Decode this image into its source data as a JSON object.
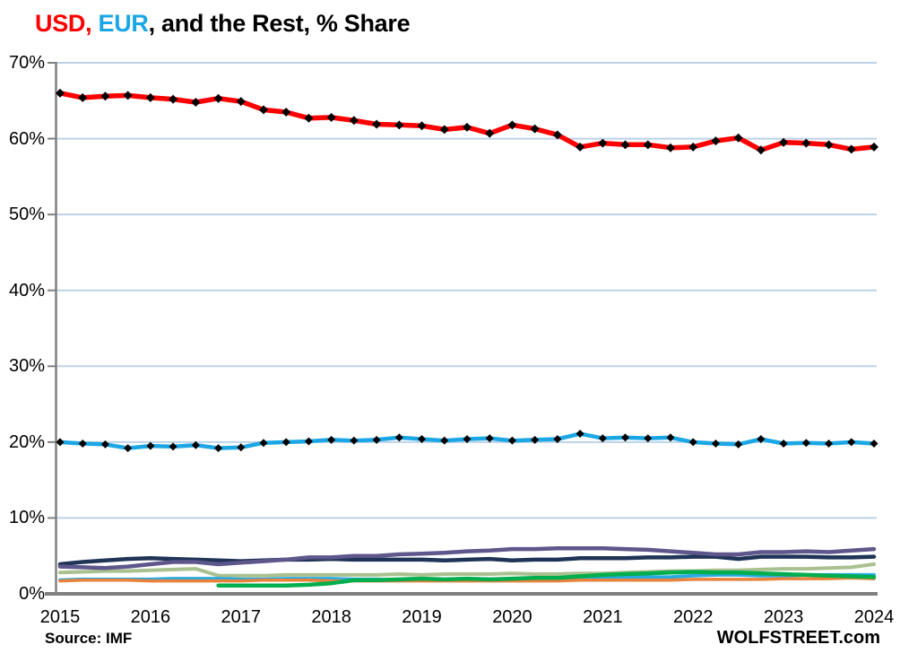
{
  "title": {
    "part_usd": "USD,",
    "part_eur": " EUR",
    "part_rest": ", and the Rest, % Share"
  },
  "footer": {
    "source_label": "Source: IMF",
    "brand": "WOLFSTREET.com"
  },
  "colors": {
    "usd_red": "#FF0000",
    "eur_cyan": "#1BA7E5",
    "navy": "#1F3456",
    "purple": "#5E578C",
    "sage_green": "#A9C08F",
    "sky_blue": "#29ABE2",
    "orange": "#E8823C",
    "green": "#00AE4D",
    "gridline": "#BDD2E7",
    "axis": "#808080",
    "axis_bottom": "#7F7F7F",
    "marker": "#000000",
    "text": "#000000"
  },
  "chart_data": {
    "type": "line",
    "title": "USD, EUR, and the Rest, % Share",
    "xlabel": "",
    "ylabel": "% Share",
    "ylim": [
      0,
      70
    ],
    "x_range": [
      2015,
      2024
    ],
    "x_unit": "years, quarterly data points (2015-Q1 through 2024-Q1)",
    "grid": true,
    "legend_position": "none (USD red and EUR cyan identified in title)",
    "y_ticks": [
      {
        "label": "70%",
        "value": 70
      },
      {
        "label": "60%",
        "value": 60
      },
      {
        "label": "50%",
        "value": 50
      },
      {
        "label": "40%",
        "value": 40
      },
      {
        "label": "30%",
        "value": 30
      },
      {
        "label": "20%",
        "value": 20
      },
      {
        "label": "10%",
        "value": 10
      },
      {
        "label": "0%",
        "value": 0
      }
    ],
    "x_ticks": [
      {
        "label": "2015",
        "value": 2015
      },
      {
        "label": "2016",
        "value": 2016
      },
      {
        "label": "2017",
        "value": 2017
      },
      {
        "label": "2018",
        "value": 2018
      },
      {
        "label": "2019",
        "value": 2019
      },
      {
        "label": "2020",
        "value": 2020
      },
      {
        "label": "2021",
        "value": 2021
      },
      {
        "label": "2022",
        "value": 2022
      },
      {
        "label": "2023",
        "value": 2023
      },
      {
        "label": "2024",
        "value": 2024
      }
    ],
    "series": [
      {
        "name": "sage-green-line",
        "color_key": "sage_green",
        "color": "#A9C08F",
        "width": 4,
        "marker": "none",
        "values": [
          2.8,
          2.9,
          3.0,
          3.0,
          3.1,
          3.2,
          3.3,
          2.4,
          2.4,
          2.4,
          2.5,
          2.5,
          2.5,
          2.5,
          2.5,
          2.6,
          2.5,
          2.6,
          2.6,
          2.6,
          2.7,
          2.6,
          2.6,
          2.7,
          2.7,
          2.8,
          2.9,
          3.0,
          3.0,
          3.1,
          3.1,
          3.2,
          3.3,
          3.3,
          3.4,
          3.5,
          3.9
        ]
      },
      {
        "name": "sky-blue-line",
        "color_key": "sky_blue",
        "color": "#29ABE2",
        "width": 4,
        "marker": "none",
        "values": [
          1.8,
          1.9,
          1.9,
          1.9,
          1.9,
          2.0,
          2.0,
          2.0,
          1.9,
          1.9,
          2.0,
          2.0,
          2.0,
          1.9,
          1.9,
          1.8,
          1.9,
          1.9,
          1.9,
          1.9,
          2.0,
          2.0,
          2.0,
          2.1,
          2.1,
          2.2,
          2.2,
          2.2,
          2.4,
          2.5,
          2.5,
          2.4,
          2.4,
          2.5,
          2.5,
          2.5,
          2.5
        ]
      },
      {
        "name": "orange-line",
        "color_key": "orange",
        "color": "#E8823C",
        "width": 3.5,
        "marker": "none",
        "values": [
          1.7,
          1.8,
          1.8,
          1.8,
          1.7,
          1.7,
          1.7,
          1.7,
          1.7,
          1.8,
          1.8,
          1.8,
          1.7,
          1.7,
          1.7,
          1.7,
          1.7,
          1.7,
          1.7,
          1.7,
          1.7,
          1.7,
          1.7,
          1.8,
          1.8,
          1.8,
          1.8,
          1.8,
          1.9,
          1.9,
          1.9,
          1.9,
          2.0,
          2.0,
          2.0,
          2.1,
          2.0
        ]
      },
      {
        "name": "green-line",
        "color_key": "green",
        "color": "#00AE4D",
        "width": 4.5,
        "marker": "none",
        "values": [
          null,
          null,
          null,
          null,
          null,
          null,
          null,
          1.1,
          1.1,
          1.1,
          1.1,
          1.2,
          1.4,
          1.8,
          1.8,
          1.9,
          2.0,
          1.9,
          2.0,
          1.9,
          2.0,
          2.1,
          2.1,
          2.3,
          2.5,
          2.6,
          2.7,
          2.8,
          2.9,
          2.8,
          2.8,
          2.7,
          2.6,
          2.5,
          2.4,
          2.3,
          2.2
        ]
      },
      {
        "name": "navy-line",
        "color_key": "navy",
        "color": "#1F3456",
        "width": 4.5,
        "marker": "none",
        "values": [
          3.9,
          4.2,
          4.4,
          4.6,
          4.7,
          4.6,
          4.5,
          4.4,
          4.3,
          4.4,
          4.5,
          4.5,
          4.6,
          4.5,
          4.5,
          4.5,
          4.5,
          4.4,
          4.5,
          4.6,
          4.4,
          4.5,
          4.5,
          4.7,
          4.7,
          4.7,
          4.8,
          4.8,
          4.9,
          4.9,
          4.6,
          4.9,
          4.9,
          4.9,
          4.8,
          4.8,
          4.9
        ]
      },
      {
        "name": "purple-line",
        "color_key": "purple",
        "color": "#5E578C",
        "width": 4.5,
        "marker": "none",
        "values": [
          3.6,
          3.5,
          3.4,
          3.6,
          3.9,
          4.2,
          4.2,
          3.9,
          4.1,
          4.3,
          4.5,
          4.8,
          4.8,
          5.0,
          5.0,
          5.2,
          5.3,
          5.4,
          5.6,
          5.7,
          5.9,
          5.9,
          6.0,
          6.0,
          6.0,
          5.9,
          5.8,
          5.6,
          5.4,
          5.2,
          5.2,
          5.5,
          5.5,
          5.6,
          5.5,
          5.7,
          5.9
        ]
      },
      {
        "name": "EUR",
        "color_key": "eur_cyan",
        "color": "#1BA7E5",
        "width": 4.5,
        "marker": "diamond",
        "marker_size": 4.5,
        "values": [
          20.0,
          19.8,
          19.7,
          19.2,
          19.5,
          19.4,
          19.6,
          19.2,
          19.3,
          19.9,
          20.0,
          20.1,
          20.3,
          20.2,
          20.3,
          20.6,
          20.4,
          20.2,
          20.4,
          20.5,
          20.2,
          20.3,
          20.4,
          21.1,
          20.5,
          20.6,
          20.5,
          20.6,
          20.0,
          19.8,
          19.7,
          20.4,
          19.8,
          19.9,
          19.8,
          20.0,
          19.8
        ]
      },
      {
        "name": "USD",
        "color_key": "usd_red",
        "color": "#FF0000",
        "width": 5.5,
        "marker": "diamond",
        "marker_size": 5,
        "values": [
          66.0,
          65.4,
          65.6,
          65.7,
          65.4,
          65.2,
          64.8,
          65.3,
          64.9,
          63.8,
          63.5,
          62.7,
          62.8,
          62.4,
          61.9,
          61.8,
          61.7,
          61.2,
          61.5,
          60.7,
          61.8,
          61.3,
          60.5,
          58.9,
          59.4,
          59.2,
          59.2,
          58.8,
          58.9,
          59.7,
          60.1,
          58.5,
          59.5,
          59.4,
          59.2,
          58.6,
          58.9
        ]
      }
    ]
  }
}
